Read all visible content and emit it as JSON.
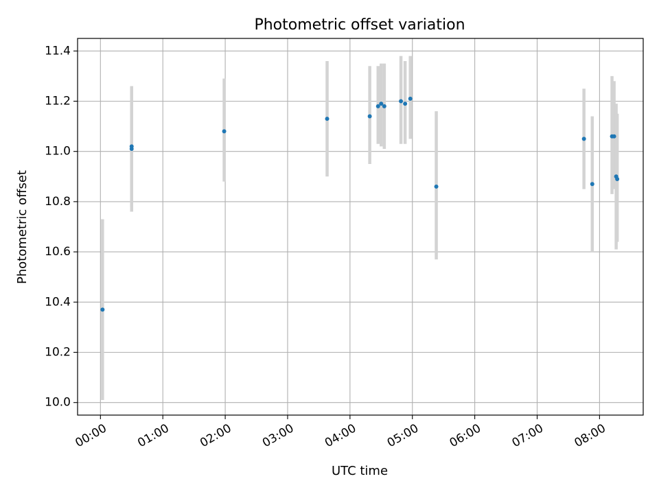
{
  "chart_data": {
    "type": "scatter",
    "title": "Photometric offset variation",
    "xlabel": "UTC time",
    "ylabel": "Photometric offset",
    "x_ticks": [
      "00:00",
      "01:00",
      "02:00",
      "03:00",
      "04:00",
      "05:00",
      "06:00",
      "07:00",
      "08:00"
    ],
    "y_ticks": [
      "10.0",
      "10.2",
      "10.4",
      "10.6",
      "10.8",
      "11.0",
      "11.2",
      "11.4"
    ],
    "y_tick_values": [
      10.0,
      10.2,
      10.4,
      10.6,
      10.8,
      11.0,
      11.2,
      11.4
    ],
    "xlim": [
      "-00:22",
      "08:42"
    ],
    "ylim": [
      9.95,
      11.45
    ],
    "grid": true,
    "colors": {
      "point": "#1f77b4",
      "errorbar": "#d3d3d3",
      "grid": "#b0b0b0"
    },
    "points": [
      {
        "x": "00:02",
        "y": 10.37,
        "err_low": 10.01,
        "err_high": 10.73
      },
      {
        "x": "00:30",
        "y": 11.01,
        "err_low": 10.76,
        "err_high": 11.26
      },
      {
        "x": "00:30",
        "y": 11.02,
        "err_low": 10.78,
        "err_high": 11.26
      },
      {
        "x": "01:59",
        "y": 11.08,
        "err_low": 10.88,
        "err_high": 11.29
      },
      {
        "x": "03:38",
        "y": 11.13,
        "err_low": 10.9,
        "err_high": 11.36
      },
      {
        "x": "04:19",
        "y": 11.14,
        "err_low": 10.95,
        "err_high": 11.34
      },
      {
        "x": "04:27",
        "y": 11.18,
        "err_low": 11.03,
        "err_high": 11.34
      },
      {
        "x": "04:30",
        "y": 11.19,
        "err_low": 11.02,
        "err_high": 11.35
      },
      {
        "x": "04:33",
        "y": 11.18,
        "err_low": 11.01,
        "err_high": 11.35
      },
      {
        "x": "04:49",
        "y": 11.2,
        "err_low": 11.03,
        "err_high": 11.38
      },
      {
        "x": "04:53",
        "y": 11.19,
        "err_low": 11.03,
        "err_high": 11.36
      },
      {
        "x": "04:58",
        "y": 11.21,
        "err_low": 11.05,
        "err_high": 11.38
      },
      {
        "x": "05:23",
        "y": 10.86,
        "err_low": 10.57,
        "err_high": 11.16
      },
      {
        "x": "07:45",
        "y": 11.05,
        "err_low": 10.85,
        "err_high": 11.25
      },
      {
        "x": "07:53",
        "y": 10.87,
        "err_low": 10.6,
        "err_high": 11.14
      },
      {
        "x": "08:12",
        "y": 11.06,
        "err_low": 10.83,
        "err_high": 11.3
      },
      {
        "x": "08:14",
        "y": 11.06,
        "err_low": 10.85,
        "err_high": 11.28
      },
      {
        "x": "08:16",
        "y": 10.9,
        "err_low": 10.61,
        "err_high": 11.19
      },
      {
        "x": "08:17",
        "y": 10.89,
        "err_low": 10.64,
        "err_high": 11.15
      }
    ]
  }
}
